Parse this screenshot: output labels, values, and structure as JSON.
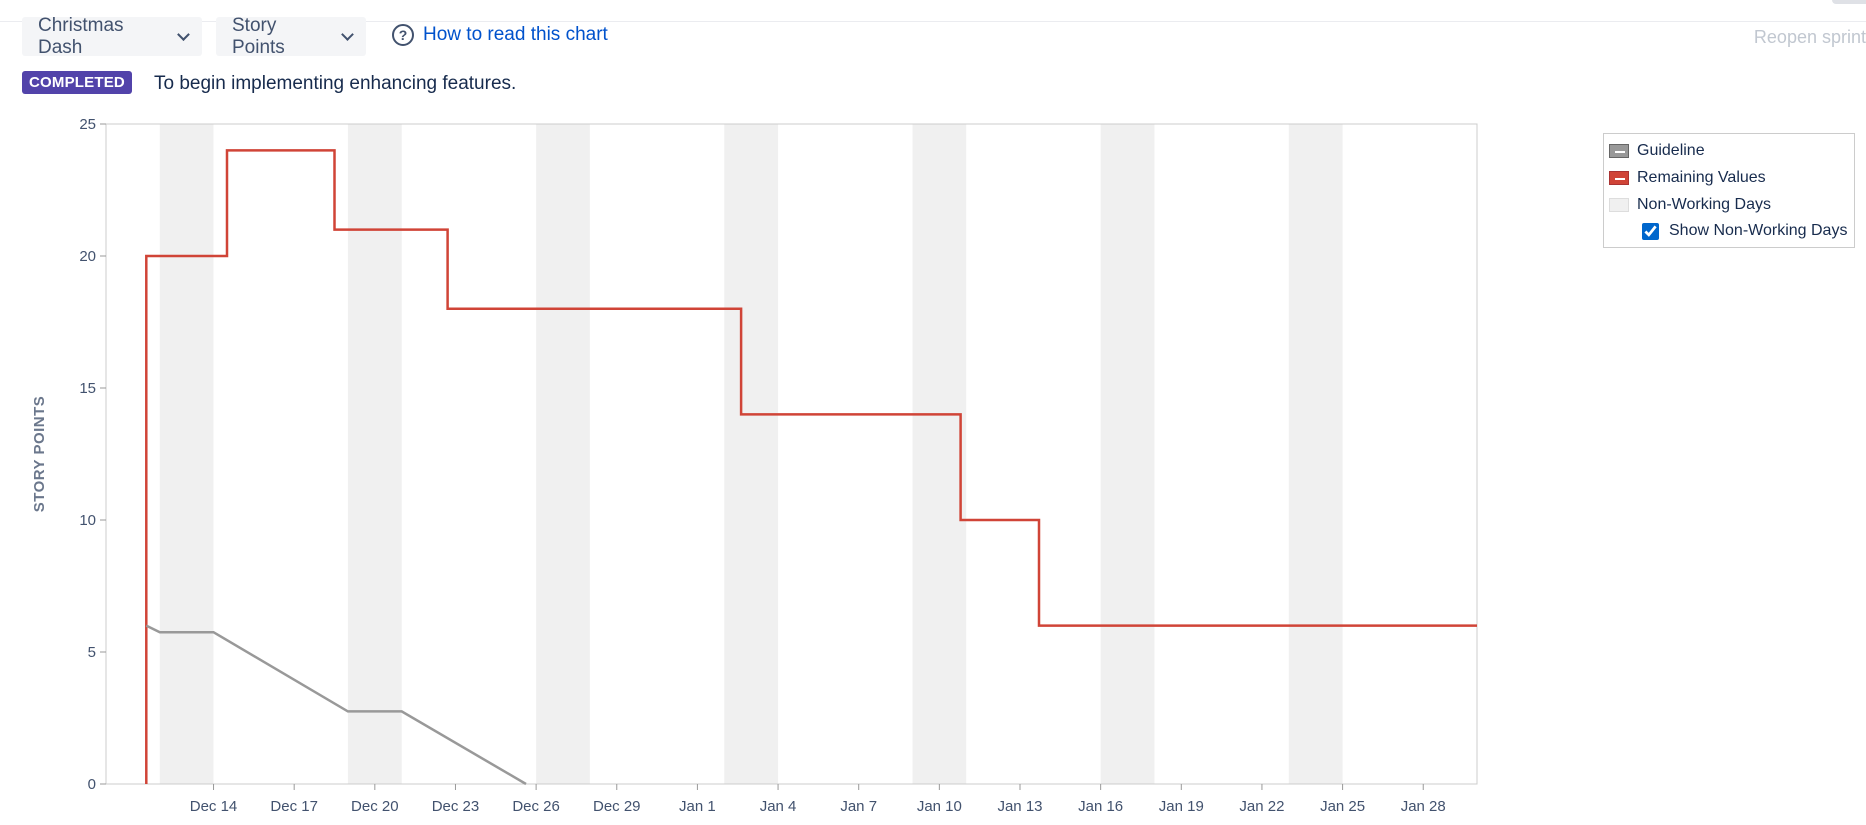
{
  "header": {
    "sprint_dropdown": "Christmas Dash",
    "estimate_dropdown": "Story Points",
    "help_link": "How to read this chart",
    "reopen_button": "Reopen sprint"
  },
  "sprint": {
    "status": "COMPLETED",
    "goal": "To begin implementing enhancing features."
  },
  "legend": {
    "guideline": "Guideline",
    "remaining": "Remaining Values",
    "non_working": "Non-Working Days",
    "show_non_working": "Show Non-Working Days",
    "show_non_working_checked": true
  },
  "colors": {
    "remaining": "#d04437",
    "guideline": "#999999",
    "non_working": "#f0f0f0",
    "badge": "#5243aa",
    "link": "#0052cc"
  },
  "chart_data": {
    "type": "line",
    "ylabel": "STORY POINTS",
    "xlabel": "",
    "ylim": [
      0,
      25
    ],
    "yticks": [
      0,
      5,
      10,
      15,
      20,
      25
    ],
    "xlim": [
      "2019-12-10",
      "2020-01-30"
    ],
    "xtick_labels": [
      "Dec 14",
      "Dec 17",
      "Dec 20",
      "Dec 23",
      "Dec 26",
      "Dec 29",
      "Jan 1",
      "Jan 4",
      "Jan 7",
      "Jan 10",
      "Jan 13",
      "Jan 16",
      "Jan 19",
      "Jan 22",
      "Jan 25",
      "Jan 28"
    ],
    "xtick_dates": [
      "2019-12-14",
      "2019-12-17",
      "2019-12-20",
      "2019-12-23",
      "2019-12-26",
      "2019-12-29",
      "2020-01-01",
      "2020-01-04",
      "2020-01-07",
      "2020-01-10",
      "2020-01-13",
      "2020-01-16",
      "2020-01-19",
      "2020-01-22",
      "2020-01-25",
      "2020-01-28"
    ],
    "non_working_days": [
      [
        "2019-12-12",
        "2019-12-14"
      ],
      [
        "2019-12-19",
        "2019-12-21"
      ],
      [
        "2019-12-26",
        "2019-12-28"
      ],
      [
        "2020-01-02",
        "2020-01-04"
      ],
      [
        "2020-01-09",
        "2020-01-11"
      ],
      [
        "2020-01-16",
        "2020-01-18"
      ],
      [
        "2020-01-23",
        "2020-01-25"
      ]
    ],
    "grid": false,
    "legend_position": "top-right",
    "series": [
      {
        "name": "Remaining Values",
        "step": true,
        "points": [
          [
            "2019-12-11 12:00",
            0
          ],
          [
            "2019-12-11 12:00",
            20
          ],
          [
            "2019-12-14 12:00",
            20
          ],
          [
            "2019-12-14 12:00",
            24
          ],
          [
            "2019-12-18 12:00",
            24
          ],
          [
            "2019-12-18 12:00",
            21
          ],
          [
            "2019-12-22 17:00",
            21
          ],
          [
            "2019-12-22 17:00",
            18
          ],
          [
            "2020-01-02 15:00",
            18
          ],
          [
            "2020-01-02 15:00",
            14
          ],
          [
            "2020-01-10 19:00",
            14
          ],
          [
            "2020-01-10 19:00",
            10
          ],
          [
            "2020-01-13 17:00",
            10
          ],
          [
            "2020-01-13 17:00",
            6
          ],
          [
            "2020-01-30 00:00",
            6
          ]
        ]
      },
      {
        "name": "Guideline",
        "step": false,
        "points": [
          [
            "2019-12-11 12:00",
            6
          ],
          [
            "2019-12-12 00:00",
            5.75
          ],
          [
            "2019-12-14 00:00",
            5.75
          ],
          [
            "2019-12-19 00:00",
            2.75
          ],
          [
            "2019-12-21 00:00",
            2.75
          ],
          [
            "2019-12-25 15:00",
            0
          ]
        ]
      }
    ]
  }
}
